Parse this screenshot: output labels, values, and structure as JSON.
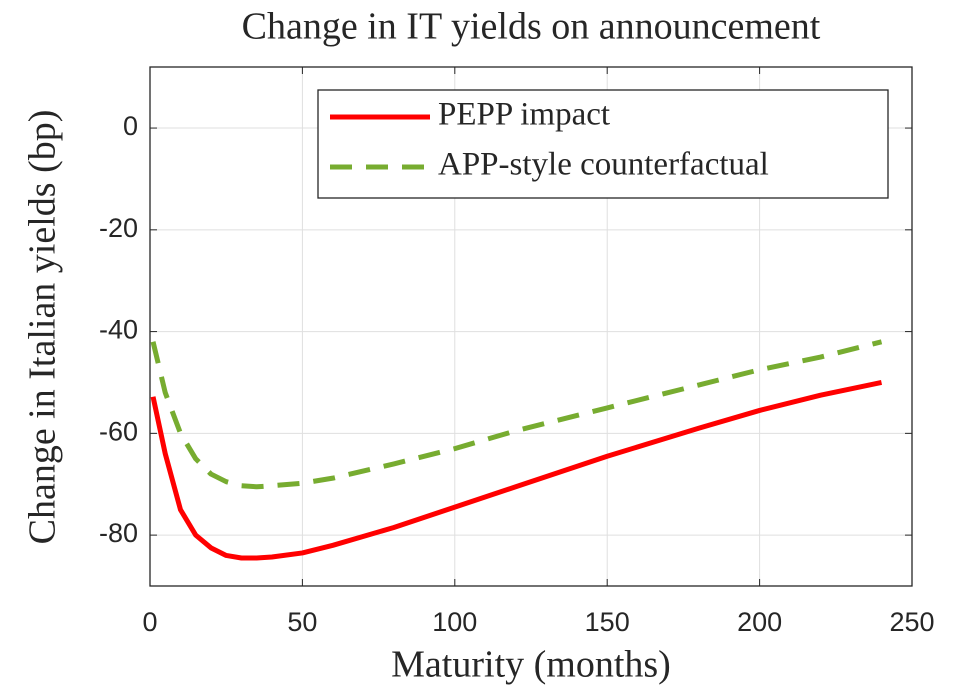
{
  "chart_data": {
    "type": "line",
    "title": "Change in IT yields on announcement",
    "xlabel": "Maturity (months)",
    "ylabel": "Change in Italian yields (bp)",
    "x": [
      1,
      5,
      10,
      15,
      20,
      25,
      30,
      35,
      40,
      50,
      60,
      80,
      100,
      120,
      150,
      180,
      200,
      220,
      240
    ],
    "series": [
      {
        "name": "PEPP impact",
        "color": "#ff0000",
        "dash": "solid",
        "values": [
          -52.8,
          -64,
          -75,
          -80,
          -82.5,
          -84,
          -84.5,
          -84.5,
          -84.3,
          -83.5,
          -82,
          -78.5,
          -74.5,
          -70.5,
          -64.5,
          -59,
          -55.5,
          -52.5,
          -50
        ]
      },
      {
        "name": "APP-style counterfactual",
        "color": "#77ac30",
        "dash": "dashed",
        "values": [
          -42,
          -52,
          -60,
          -65,
          -68,
          -69.5,
          -70.3,
          -70.5,
          -70.3,
          -69.8,
          -68.8,
          -66,
          -63,
          -59.5,
          -55,
          -50.5,
          -47.5,
          -45,
          -42
        ]
      }
    ],
    "xlim": [
      0,
      250
    ],
    "xticks": [
      0,
      50,
      100,
      150,
      200,
      250
    ],
    "ylim": [
      -90,
      12
    ],
    "yticks": [
      -80,
      -60,
      -40,
      -20,
      0
    ],
    "grid": true,
    "legend": "top-right"
  }
}
